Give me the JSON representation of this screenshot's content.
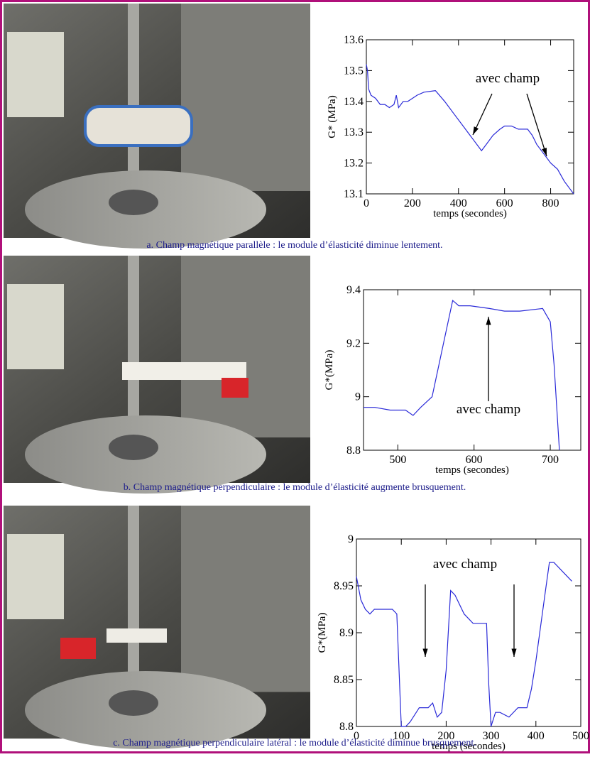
{
  "chart_data": [
    {
      "type": "line",
      "caption": "a. Champ magnétique parallèle : le module d’élasticité diminue lentement.",
      "x_label": "temps (secondes)",
      "y_label": "G* (MPa)",
      "annotation": "avec champ",
      "color": "#2a2ad8",
      "xlim": [
        0,
        900
      ],
      "xticks": [
        0,
        200,
        400,
        600,
        800
      ],
      "ylim": [
        13.1,
        13.6
      ],
      "yticks": [
        13.1,
        13.2,
        13.3,
        13.4,
        13.5,
        13.6
      ],
      "x": [
        0,
        5,
        10,
        20,
        40,
        60,
        80,
        100,
        120,
        130,
        140,
        160,
        180,
        200,
        220,
        250,
        300,
        340,
        380,
        420,
        450,
        470,
        490,
        500,
        520,
        550,
        580,
        600,
        630,
        660,
        680,
        700,
        720,
        740,
        760,
        780,
        800,
        830,
        860,
        880,
        900
      ],
      "values": [
        13.52,
        13.5,
        13.44,
        13.42,
        13.41,
        13.39,
        13.39,
        13.38,
        13.39,
        13.42,
        13.38,
        13.4,
        13.4,
        13.41,
        13.42,
        13.43,
        13.435,
        13.4,
        13.36,
        13.32,
        13.29,
        13.27,
        13.25,
        13.24,
        13.26,
        13.29,
        13.31,
        13.32,
        13.32,
        13.31,
        13.31,
        13.31,
        13.29,
        13.26,
        13.24,
        13.22,
        13.2,
        13.18,
        13.14,
        13.12,
        13.1
      ]
    },
    {
      "type": "line",
      "caption": "b. Champ magnétique perpendiculaire : le module d’élasticité augmente brusquement.",
      "x_label": "temps (secondes)",
      "y_label": "G*(MPa)",
      "annotation": "avec champ",
      "color": "#2a2ad8",
      "xlim": [
        455,
        740
      ],
      "xticks": [
        500,
        600,
        700
      ],
      "ylim": [
        8.8,
        9.4
      ],
      "yticks": [
        8.8,
        9,
        9.2,
        9.4
      ],
      "x": [
        455,
        470,
        490,
        510,
        520,
        530,
        545,
        560,
        572,
        580,
        595,
        620,
        640,
        660,
        690,
        700,
        705,
        712
      ],
      "values": [
        8.96,
        8.96,
        8.95,
        8.95,
        8.93,
        8.96,
        9.0,
        9.2,
        9.36,
        9.34,
        9.34,
        9.33,
        9.32,
        9.32,
        9.33,
        9.28,
        9.12,
        8.8
      ]
    },
    {
      "type": "line",
      "caption": "c. Champ magnétique perpendiculaire latéral : le module d’élasticité diminue brusquement.",
      "x_label": "temps (secondes)",
      "y_label": "G*(MPa)",
      "annotation": "avec champ",
      "color": "#2a2ad8",
      "xlim": [
        0,
        500
      ],
      "xticks": [
        0,
        100,
        200,
        300,
        400,
        500
      ],
      "ylim": [
        8.8,
        9
      ],
      "yticks": [
        8.8,
        8.85,
        8.9,
        8.95,
        9
      ],
      "x": [
        0,
        10,
        20,
        30,
        40,
        60,
        80,
        90,
        100,
        110,
        120,
        140,
        160,
        170,
        180,
        190,
        200,
        210,
        220,
        240,
        260,
        290,
        295,
        300,
        310,
        320,
        340,
        360,
        380,
        390,
        400,
        420,
        430,
        440,
        460,
        480
      ],
      "values": [
        8.96,
        8.935,
        8.925,
        8.92,
        8.925,
        8.925,
        8.925,
        8.92,
        8.8,
        8.8,
        8.805,
        8.82,
        8.82,
        8.825,
        8.81,
        8.815,
        8.86,
        8.945,
        8.94,
        8.92,
        8.91,
        8.91,
        8.845,
        8.8,
        8.815,
        8.815,
        8.81,
        8.82,
        8.82,
        8.84,
        8.87,
        8.94,
        8.975,
        8.975,
        8.965,
        8.955
      ]
    }
  ]
}
